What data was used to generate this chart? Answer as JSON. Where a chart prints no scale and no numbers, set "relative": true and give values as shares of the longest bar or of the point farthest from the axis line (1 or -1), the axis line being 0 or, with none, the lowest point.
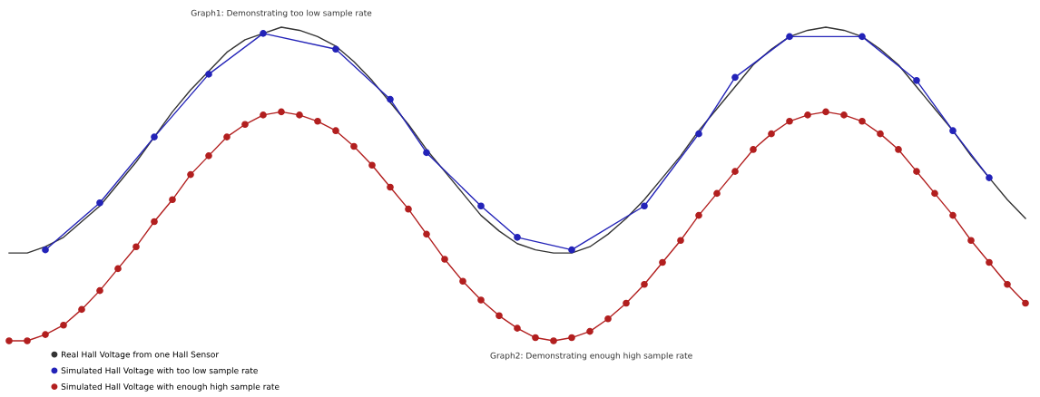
{
  "chart_data": {
    "type": "line",
    "relative": true,
    "legend": "bottom left",
    "categories": [
      null,
      null,
      null,
      null,
      null,
      null,
      null,
      null,
      null,
      null,
      null,
      null,
      null,
      null,
      null,
      null,
      null,
      null,
      null,
      null,
      null,
      null,
      null,
      null,
      null,
      null,
      null,
      null,
      null,
      null,
      null,
      null,
      null,
      null,
      null,
      null,
      null,
      null,
      null,
      null,
      null,
      null,
      null,
      null,
      null,
      null,
      null,
      null,
      null,
      null,
      null,
      null,
      null,
      null,
      null,
      null,
      null
    ],
    "annotations": [
      "Graph1: Demonstrating too low sample rate",
      "Graph2: Demonstrating enough high sample rate"
    ],
    "series": [
      {
        "name": "Real Hall Voltage from one Hall Sensor",
        "color": "#333333",
        "marker": "none",
        "values": [
          0.28,
          0.28,
          0.3,
          0.33,
          0.38,
          0.43,
          0.5,
          0.57,
          0.65,
          0.73,
          0.8,
          0.86,
          0.92,
          0.96,
          0.98,
          1.0,
          0.99,
          0.97,
          0.94,
          0.89,
          0.83,
          0.76,
          0.69,
          0.61,
          0.54,
          0.47,
          0.4,
          0.35,
          0.31,
          0.29,
          0.28,
          0.28,
          0.3,
          0.34,
          0.39,
          0.45,
          0.52,
          0.59,
          0.67,
          0.74,
          0.81,
          0.88,
          0.93,
          0.97,
          0.99,
          1.0,
          0.99,
          0.97,
          0.93,
          0.88,
          0.81,
          0.74,
          0.67,
          0.59,
          0.52,
          0.45,
          0.39
        ]
      },
      {
        "name": "Simulated Hall Voltage with too low sample rate",
        "color": "#2323b8",
        "marker": "circle",
        "values": [
          null,
          null,
          0.29,
          null,
          null,
          0.44,
          null,
          null,
          0.65,
          null,
          null,
          0.85,
          null,
          null,
          0.98,
          null,
          null,
          null,
          0.93,
          null,
          null,
          0.77,
          null,
          0.6,
          null,
          null,
          0.43,
          null,
          0.33,
          null,
          null,
          0.29,
          null,
          null,
          null,
          0.43,
          null,
          null,
          0.66,
          null,
          0.84,
          null,
          null,
          0.97,
          null,
          null,
          null,
          0.97,
          null,
          null,
          0.83,
          null,
          0.67,
          null,
          0.52,
          null,
          null
        ]
      },
      {
        "name": "Simulated Hall Voltage with enough high sample rate",
        "color": "#b21f1f",
        "marker": "circle",
        "values": [
          0.0,
          0.0,
          0.02,
          0.05,
          0.1,
          0.16,
          0.23,
          0.3,
          0.38,
          0.45,
          0.53,
          0.59,
          0.65,
          0.69,
          0.72,
          0.73,
          0.72,
          0.7,
          0.67,
          0.62,
          0.56,
          0.49,
          0.42,
          0.34,
          0.26,
          0.19,
          0.13,
          0.08,
          0.04,
          0.01,
          0.0,
          0.01,
          0.03,
          0.07,
          0.12,
          0.18,
          0.25,
          0.32,
          0.4,
          0.47,
          0.54,
          0.61,
          0.66,
          0.7,
          0.72,
          0.73,
          0.72,
          0.7,
          0.66,
          0.61,
          0.54,
          0.47,
          0.4,
          0.32,
          0.25,
          0.18,
          0.12
        ]
      }
    ]
  }
}
